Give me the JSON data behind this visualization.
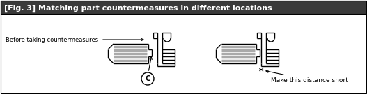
{
  "title": "[Fig. 3] Matching part countermeasures in different locations",
  "title_bg": "#3a3a3a",
  "title_color": "#ffffff",
  "label_before": "Before taking countermeasures",
  "label_c": "C",
  "label_distance": "Make this distance short",
  "bg_color": "#ffffff",
  "border_color": "#000000",
  "line_color": "#000000",
  "gray_color": "#aaaaaa",
  "fig_width": 5.27,
  "fig_height": 1.35,
  "dpi": 100
}
